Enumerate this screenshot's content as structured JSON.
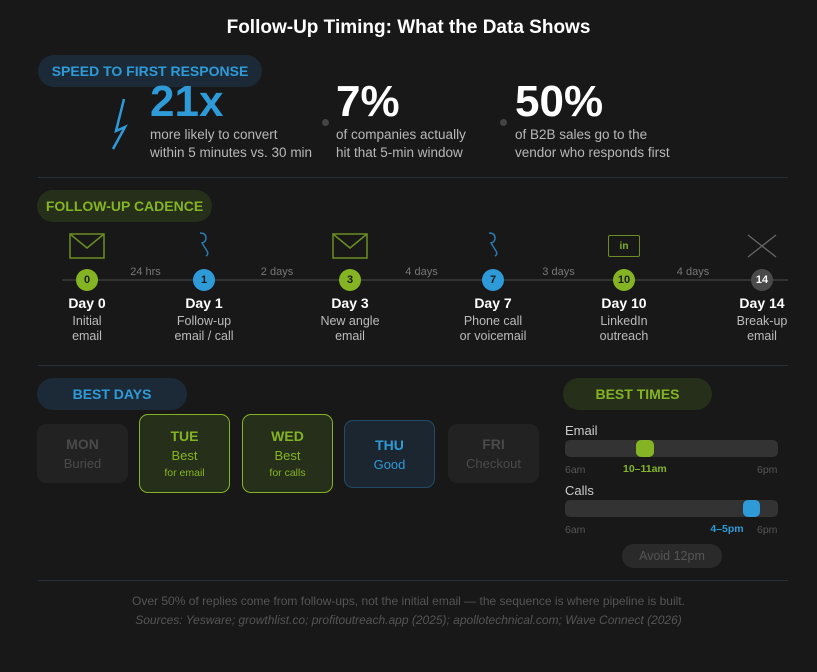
{
  "title": "Follow-Up Timing: What the Data Shows",
  "speed": {
    "label": "SPEED TO FIRST RESPONSE",
    "icon": "lightning-bolt-icon",
    "stats": [
      {
        "value": "21x",
        "line1": "more likely to convert",
        "line2": "within 5 minutes vs. 30 min"
      },
      {
        "value": "7%",
        "line1": "of companies actually",
        "line2": "hit that 5-min window"
      },
      {
        "value": "50%",
        "line1": "of B2B sales go to the",
        "line2": "vendor who responds first"
      }
    ]
  },
  "cadence": {
    "label": "FOLLOW-UP CADENCE",
    "steps": [
      {
        "num": "0",
        "day": "Day 0",
        "line1": "Initial",
        "line2": "email",
        "icon": "envelope-icon",
        "color": "green"
      },
      {
        "num": "1",
        "day": "Day 1",
        "line1": "Follow-up",
        "line2": "email / call",
        "icon": "phone-icon",
        "color": "blue"
      },
      {
        "num": "3",
        "day": "Day 3",
        "line1": "New angle",
        "line2": "email",
        "icon": "envelope-icon",
        "color": "green"
      },
      {
        "num": "7",
        "day": "Day 7",
        "line1": "Phone call",
        "line2": "or voicemail",
        "icon": "phone-icon",
        "color": "blue"
      },
      {
        "num": "10",
        "day": "Day 10",
        "line1": "LinkedIn",
        "line2": "outreach",
        "icon": "linkedin-icon",
        "icon_text": "in",
        "color": "green"
      },
      {
        "num": "14",
        "day": "Day 14",
        "line1": "Break-up",
        "line2": "email",
        "icon": "close-x-icon",
        "color": "gray"
      }
    ],
    "gaps": [
      "24 hrs",
      "2 days",
      "4 days",
      "3 days",
      "4 days"
    ]
  },
  "best_days": {
    "label": "BEST DAYS",
    "days": [
      {
        "name": "MON",
        "note": "Buried",
        "style": "dim"
      },
      {
        "name": "TUE",
        "note": "Best",
        "sub": "for email",
        "style": "hot"
      },
      {
        "name": "WED",
        "note": "Best",
        "sub": "for calls",
        "style": "hot"
      },
      {
        "name": "THU",
        "note": "Good",
        "style": "good"
      },
      {
        "name": "FRI",
        "note": "Checkout",
        "style": "dim"
      }
    ]
  },
  "best_times": {
    "label": "BEST TIMES",
    "scale_start": "6am",
    "scale_end": "6pm",
    "rows": [
      {
        "label": "Email",
        "window": "10–11am",
        "start_hour": 10,
        "end_hour": 11,
        "color": "#84b424"
      },
      {
        "label": "Calls",
        "window": "4–5pm",
        "start_hour": 16,
        "end_hour": 17,
        "color": "#2e9bd8"
      }
    ],
    "avoid": "Avoid 12pm"
  },
  "footer": {
    "note": "Over 50% of replies come from follow-ups, not the initial email — the sequence is where pipeline is built.",
    "sources": "Sources: Yesware; growthlist.co; profitoutreach.app (2025); apollotechnical.com; Wave Connect (2026)"
  },
  "colors": {
    "green": "#84b424",
    "blue": "#2e9bd8",
    "background": "#181818"
  }
}
